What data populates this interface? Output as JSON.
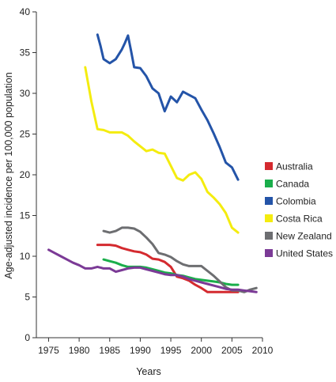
{
  "chart_data": {
    "type": "line",
    "xlabel": "Years",
    "ylabel": "Age-adjusted incidence per 100,000 population",
    "xlim": [
      1973,
      2010
    ],
    "ylim": [
      0,
      40
    ],
    "xticks": [
      1975,
      1980,
      1985,
      1990,
      1995,
      2000,
      2005,
      2010
    ],
    "yticks": [
      0,
      5,
      10,
      15,
      20,
      25,
      30,
      35,
      40
    ],
    "grid": false,
    "legend_position": "right",
    "series": [
      {
        "name": "Australia",
        "color": "#d42a2f",
        "x": [
          1983,
          1984,
          1985,
          1986,
          1987,
          1988,
          1989,
          1990,
          1991,
          1992,
          1993,
          1994,
          1995,
          1996,
          1997,
          1998,
          1999,
          2000,
          2001,
          2002,
          2003,
          2004,
          2005,
          2006
        ],
        "y": [
          11.4,
          11.4,
          11.4,
          11.3,
          11.0,
          10.8,
          10.6,
          10.5,
          10.2,
          9.7,
          9.6,
          9.3,
          8.7,
          7.5,
          7.3,
          7.0,
          6.5,
          6.1,
          5.6,
          5.6,
          5.6,
          5.6,
          5.6,
          5.6
        ]
      },
      {
        "name": "Canada",
        "color": "#1aae4b",
        "x": [
          1984,
          1985,
          1986,
          1987,
          1988,
          1989,
          1990,
          1991,
          1992,
          1993,
          1994,
          1995,
          1996,
          1997,
          1998,
          1999,
          2000,
          2001,
          2002,
          2003,
          2004,
          2005,
          2006
        ],
        "y": [
          9.6,
          9.4,
          9.2,
          8.9,
          8.7,
          8.7,
          8.7,
          8.6,
          8.4,
          8.2,
          8.0,
          7.9,
          7.7,
          7.6,
          7.4,
          7.2,
          7.1,
          7.0,
          6.9,
          6.8,
          6.6,
          6.5,
          6.5
        ]
      },
      {
        "name": "Colombia",
        "color": "#2454a8",
        "x": [
          1983,
          1983.5,
          1984,
          1985,
          1986,
          1987,
          1987.5,
          1988,
          1988.5,
          1989,
          1990,
          1991,
          1992,
          1993,
          1994,
          1995,
          1996,
          1997,
          1998,
          1999,
          2000,
          2001,
          2002,
          2003,
          2004,
          2005,
          2006
        ],
        "y": [
          37.2,
          35.8,
          34.2,
          33.7,
          34.2,
          35.4,
          36.2,
          37.1,
          35.2,
          33.2,
          33.1,
          32.1,
          30.6,
          30.0,
          27.8,
          29.6,
          28.9,
          30.2,
          29.8,
          29.4,
          28.0,
          26.7,
          25.1,
          23.4,
          21.5,
          20.9,
          19.4
        ]
      },
      {
        "name": "Costa Rica",
        "color": "#f4ec0f",
        "x": [
          1981,
          1982,
          1983,
          1984,
          1985,
          1986,
          1987,
          1988,
          1989,
          1990,
          1991,
          1992,
          1993,
          1994,
          1995,
          1996,
          1997,
          1998,
          1999,
          2000,
          2001,
          2002,
          2003,
          2004,
          2005,
          2006
        ],
        "y": [
          33.2,
          29.0,
          25.6,
          25.5,
          25.2,
          25.2,
          25.2,
          24.8,
          24.1,
          23.5,
          22.9,
          23.1,
          22.7,
          22.6,
          21.1,
          19.6,
          19.3,
          20.0,
          20.3,
          19.5,
          17.9,
          17.2,
          16.4,
          15.3,
          13.5,
          12.9
        ]
      },
      {
        "name": "New Zealand",
        "color": "#6d6e71",
        "x": [
          1984,
          1985,
          1986,
          1987,
          1988,
          1989,
          1990,
          1991,
          1992,
          1993,
          1994,
          1995,
          1996,
          1997,
          1998,
          1999,
          2000,
          2001,
          2002,
          2003,
          2004,
          2005,
          2006,
          2007,
          2008,
          2009
        ],
        "y": [
          13.1,
          12.9,
          13.1,
          13.5,
          13.5,
          13.4,
          13.0,
          12.3,
          11.5,
          10.4,
          10.2,
          9.9,
          9.4,
          9.0,
          8.8,
          8.8,
          8.8,
          8.2,
          7.6,
          6.9,
          6.2,
          5.8,
          5.8,
          5.6,
          5.9,
          6.1
        ]
      },
      {
        "name": "United States",
        "color": "#7b3a96",
        "x": [
          1975,
          1976,
          1977,
          1978,
          1979,
          1980,
          1981,
          1982,
          1983,
          1984,
          1985,
          1986,
          1987,
          1988,
          1989,
          1990,
          1991,
          1992,
          1993,
          1994,
          1995,
          1996,
          1997,
          1998,
          1999,
          2000,
          2001,
          2002,
          2003,
          2004,
          2005,
          2006,
          2007,
          2008,
          2009
        ],
        "y": [
          10.8,
          10.4,
          10.0,
          9.6,
          9.2,
          8.9,
          8.5,
          8.5,
          8.7,
          8.5,
          8.5,
          8.1,
          8.3,
          8.5,
          8.6,
          8.6,
          8.4,
          8.2,
          8.0,
          7.8,
          7.7,
          7.7,
          7.5,
          7.2,
          7.0,
          6.8,
          6.6,
          6.4,
          6.2,
          6.0,
          5.9,
          5.9,
          5.8,
          5.7,
          5.6
        ]
      }
    ]
  }
}
